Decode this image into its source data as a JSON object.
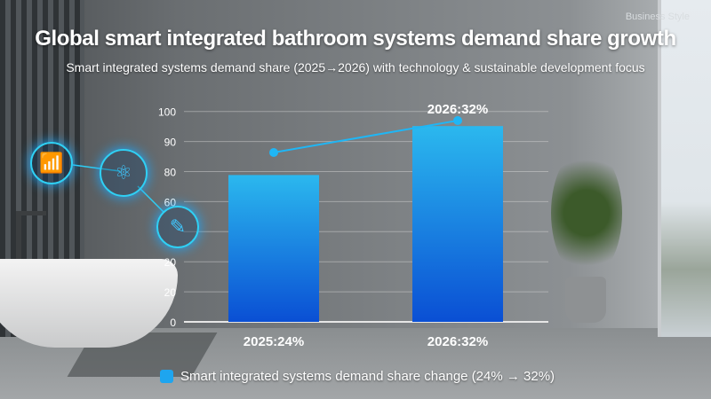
{
  "header": {
    "tag": "Business Style",
    "title": "Global smart integrated bathroom systems demand share growth",
    "subtitle": "Smart integrated systems demand share (2025→2026) with technology & sustainable development focus"
  },
  "chart_data": {
    "type": "bar",
    "categories": [
      "2025",
      "2026"
    ],
    "values": [
      24,
      32
    ],
    "category_labels": [
      "2025:24%",
      "2026:32%"
    ],
    "data_labels": [
      "",
      "2026:32%"
    ],
    "y_tick_labels": [
      "0",
      "20",
      "20",
      "",
      "60",
      "80",
      "90",
      "100"
    ],
    "overlay_line": {
      "values": [
        24,
        32
      ]
    },
    "legend": {
      "label": "Smart integrated systems demand share change (24% → 32%)",
      "placement": "bottom"
    },
    "grid": true,
    "colors": {
      "bar_top": "#2bb8ee",
      "bar_bottom": "#0a4fd4",
      "line": "#1fb6f5"
    }
  },
  "icons": [
    "wifi-icon",
    "atom-icon",
    "document-edit-icon"
  ]
}
